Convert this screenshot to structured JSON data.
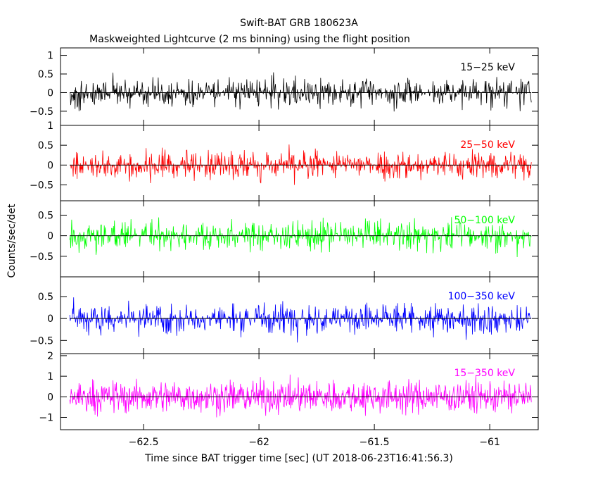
{
  "chart_data": {
    "type": "line",
    "title": "Swift-BAT GRB 180623A",
    "subtitle": "Maskweighted Lightcurve (2 ms binning) using the flight position",
    "xlabel": "Time since BAT trigger time [sec] (UT 2018-06-23T16:41:56.3)",
    "ylabel": "Counts/sec/det",
    "xlim": [
      -62.86,
      -60.79
    ],
    "x_ticks": [
      -62.5,
      -62,
      -61.5,
      -61
    ],
    "x_tick_labels": [
      "−62.5",
      "−62",
      "−61.5",
      "−61"
    ],
    "data_x_range": [
      -62.82,
      -60.82
    ],
    "grid": false,
    "panels": [
      {
        "name": "15−25 keV",
        "color": "#000000",
        "ylim": [
          -0.88,
          1.2
        ],
        "y_ticks": [
          -0.5,
          0,
          0.5,
          1
        ],
        "y_tick_labels": [
          "−0.5",
          "0",
          "0.5",
          "1"
        ],
        "amplitude": 0.95
      },
      {
        "name": "25−50 keV",
        "color": "#ff0000",
        "ylim": [
          -0.9,
          1.0
        ],
        "y_ticks": [
          -0.5,
          0,
          0.5,
          1
        ],
        "y_tick_labels": [
          "−0.5",
          "0",
          "0.5",
          "1"
        ],
        "amplitude": 0.9
      },
      {
        "name": "50−100 keV",
        "color": "#00ff00",
        "ylim": [
          -1.0,
          0.85
        ],
        "y_ticks": [
          -0.5,
          0,
          0.5
        ],
        "y_tick_labels": [
          "−0.5",
          "0",
          "0.5"
        ],
        "amplitude": 0.9
      },
      {
        "name": "100−350 keV",
        "color": "#0000ff",
        "ylim": [
          -0.8,
          0.95
        ],
        "y_ticks": [
          -0.5,
          0,
          0.5
        ],
        "y_tick_labels": [
          "−0.5",
          "0",
          "0.5"
        ],
        "amplitude": 0.85
      },
      {
        "name": "15−350 keV",
        "color": "#ff00ff",
        "ylim": [
          -1.6,
          2.1
        ],
        "y_ticks": [
          -1,
          0,
          1,
          2
        ],
        "y_tick_labels": [
          "−1",
          "0",
          "1",
          "2"
        ],
        "amplitude": 1.8
      }
    ]
  }
}
